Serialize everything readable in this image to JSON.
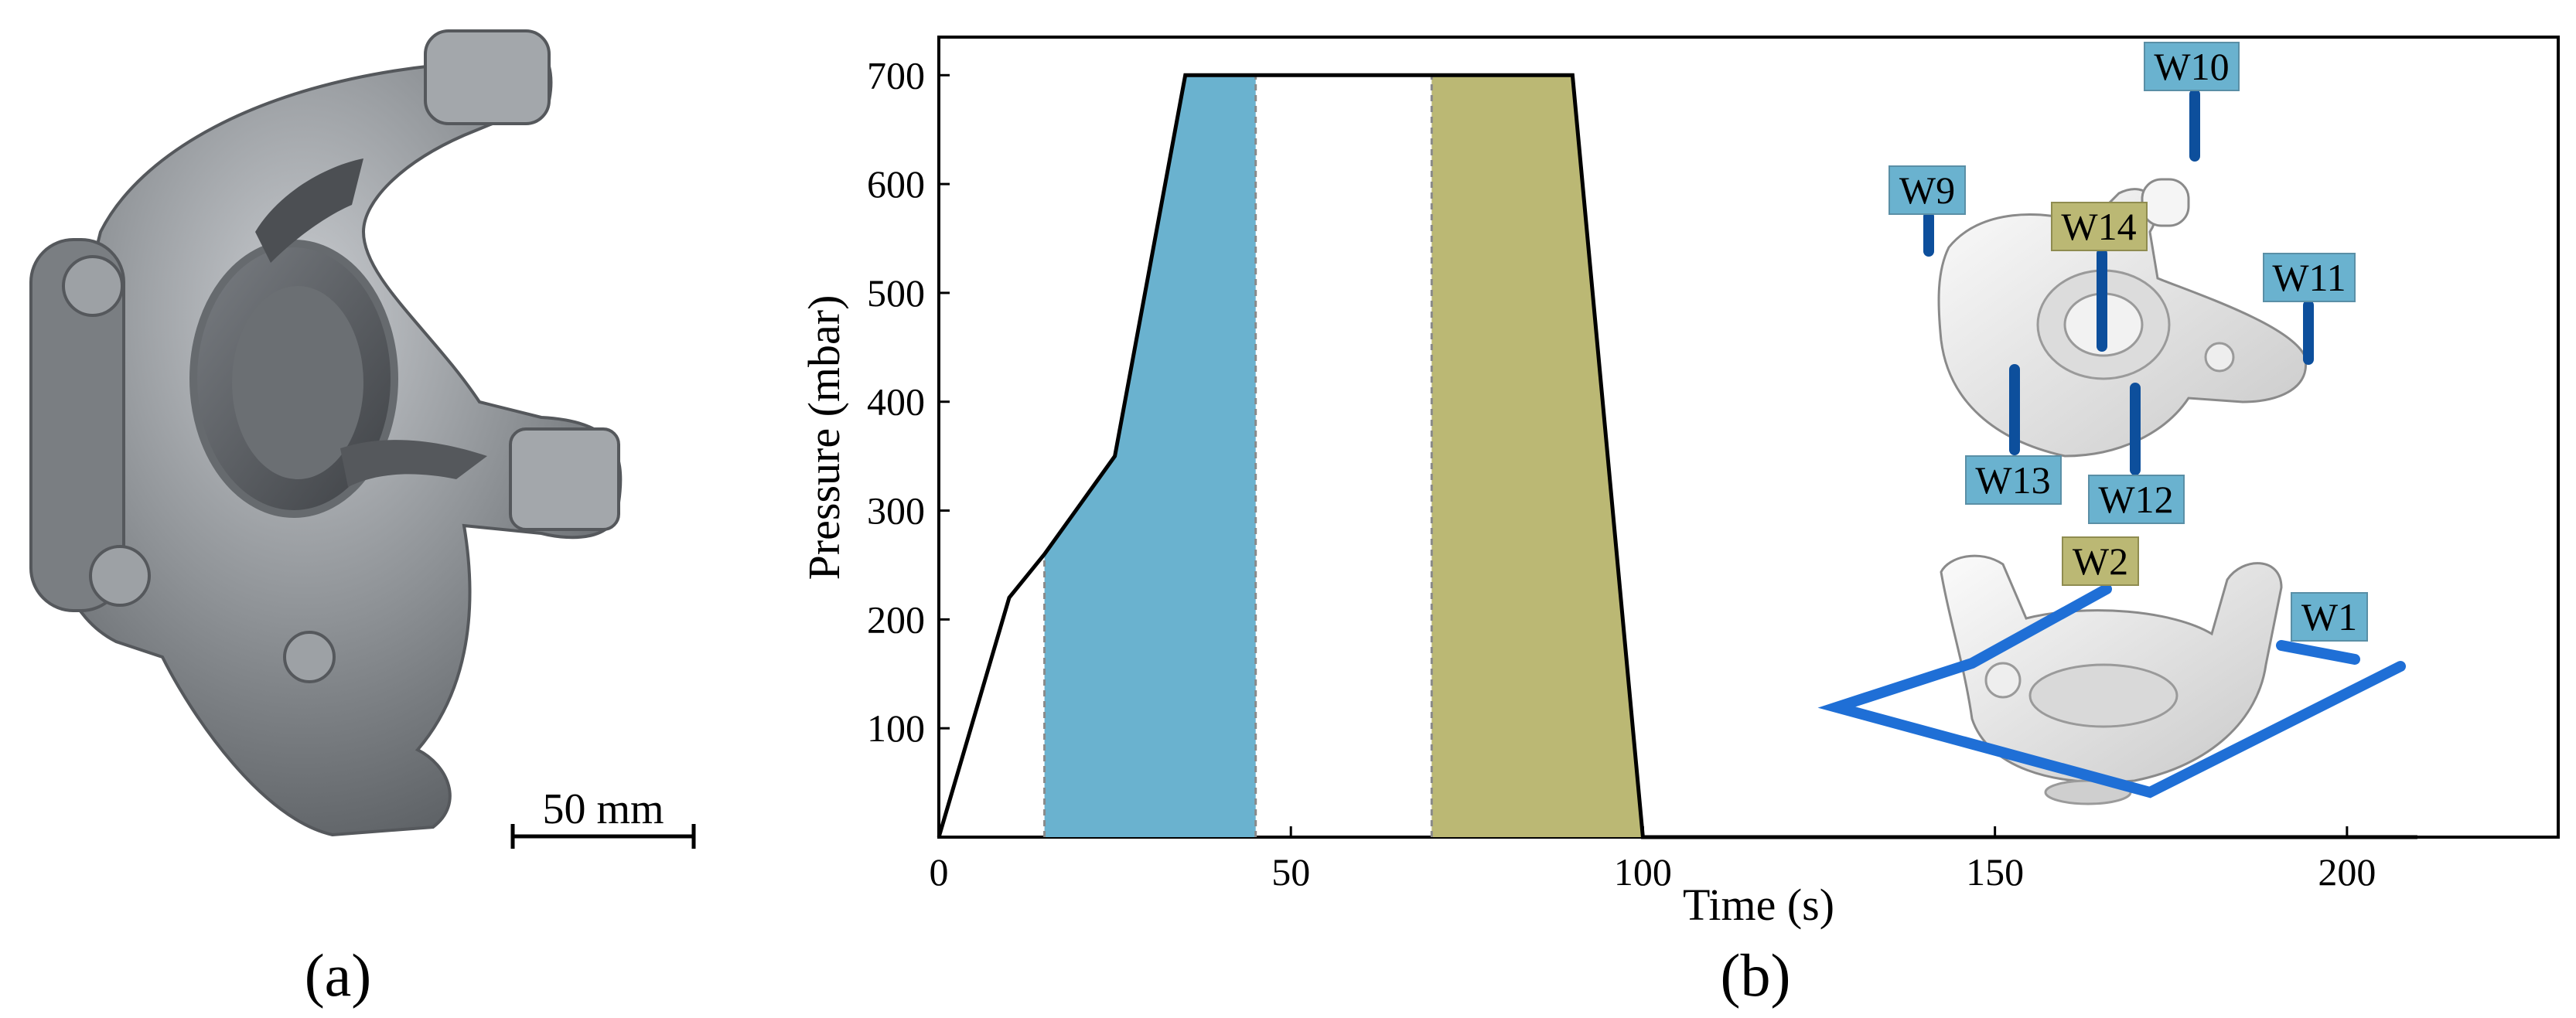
{
  "panels": {
    "a": {
      "label": "(a)",
      "scale_bar": {
        "label": "50 mm"
      }
    },
    "b": {
      "label": "(b)"
    }
  },
  "chart_data": {
    "type": "area",
    "title": "",
    "xlabel": "Time (s)",
    "ylabel": "Pressure (mbar)",
    "xlim": [
      0,
      230
    ],
    "ylim": [
      0,
      735
    ],
    "xticks": [
      0,
      50,
      100,
      150,
      200
    ],
    "yticks": [
      100,
      200,
      300,
      400,
      500,
      600,
      700
    ],
    "x_tick_labels": [
      "0",
      "50",
      "100",
      "150",
      "200"
    ],
    "y_tick_labels": [
      "100",
      "200",
      "300",
      "400",
      "500",
      "600",
      "700"
    ],
    "grid": false,
    "legend": "none",
    "series": [
      {
        "x": [
          0,
          10,
          15,
          25,
          35,
          90,
          100,
          210
        ],
        "y": [
          0,
          220,
          260,
          350,
          700,
          700,
          0,
          0
        ],
        "color": "#000000"
      }
    ],
    "shaded_regions": [
      {
        "x_start": 15,
        "x_end": 45,
        "color": "#6ab2cf"
      },
      {
        "x_start": 70,
        "x_end": 100,
        "color": "#bbb874"
      }
    ],
    "annotations": {
      "probe_labels": [
        {
          "text": "W10",
          "color": "#6ab2cf"
        },
        {
          "text": "W9",
          "color": "#6ab2cf"
        },
        {
          "text": "W14",
          "color": "#bbb874"
        },
        {
          "text": "W11",
          "color": "#6ab2cf"
        },
        {
          "text": "W13",
          "color": "#6ab2cf"
        },
        {
          "text": "W12",
          "color": "#6ab2cf"
        },
        {
          "text": "W2",
          "color": "#bbb874"
        },
        {
          "text": "W1",
          "color": "#6ab2cf"
        }
      ]
    }
  },
  "colors": {
    "blue_region": "#6ab2cf",
    "olive_region": "#bbb874",
    "probe_blue": "#1f6fd6",
    "probe_dark": "#0d4f9c",
    "part_gray": "#8e9296"
  }
}
